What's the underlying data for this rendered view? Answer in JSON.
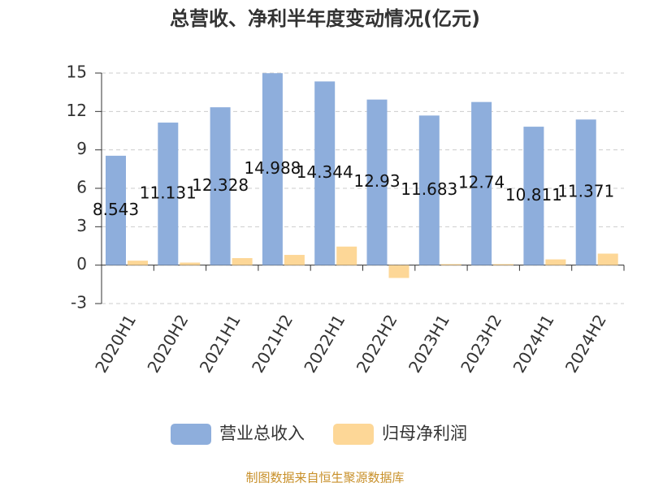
{
  "chart_data": {
    "type": "bar",
    "title": "总营收、净利半年度变动情况(亿元)",
    "categories": [
      "2020H1",
      "2020H2",
      "2021H1",
      "2021H2",
      "2022H1",
      "2022H2",
      "2023H1",
      "2023H2",
      "2024H1",
      "2024H2"
    ],
    "series": [
      {
        "name": "营业总收入",
        "color": "#8eaedc",
        "values": [
          8.543,
          11.131,
          12.328,
          14.988,
          14.344,
          12.93,
          11.683,
          12.74,
          10.811,
          11.371
        ]
      },
      {
        "name": "归母净利润",
        "color": "#fdd797",
        "values": [
          0.35,
          0.2,
          0.55,
          0.8,
          1.45,
          -1.0,
          0.08,
          0.08,
          0.45,
          0.9
        ]
      }
    ],
    "ylim": [
      -3,
      15
    ],
    "yticks": [
      -3,
      0,
      3,
      6,
      9,
      12,
      15
    ],
    "grid": true,
    "source": "制图数据来自恒生聚源数据库"
  }
}
